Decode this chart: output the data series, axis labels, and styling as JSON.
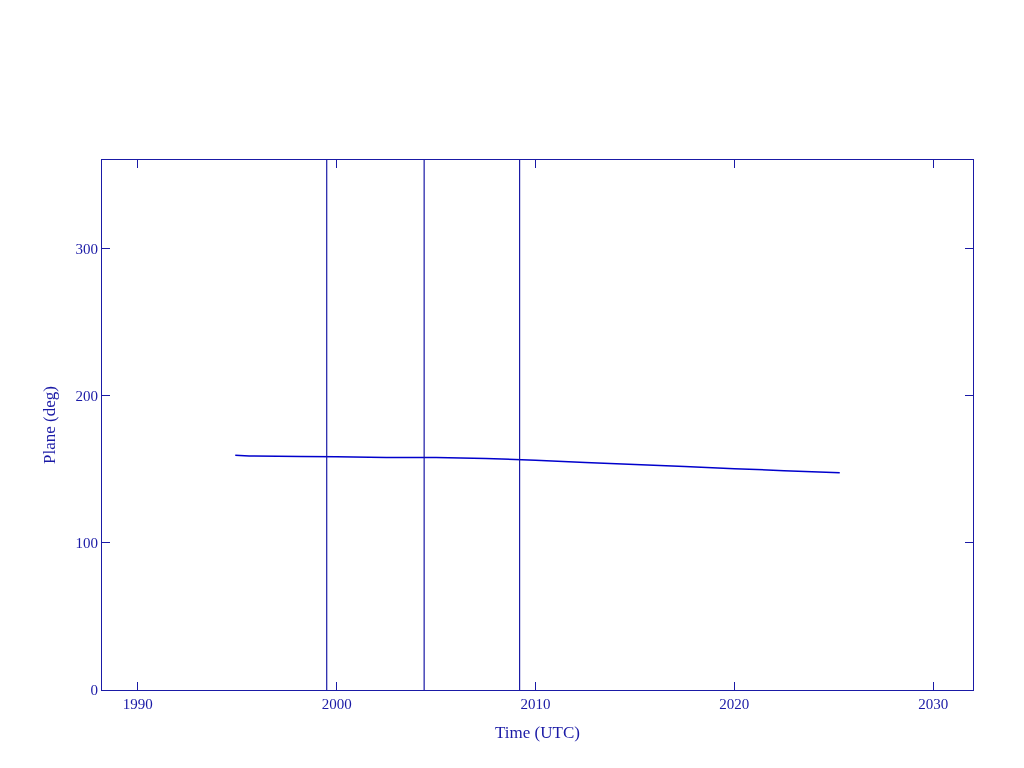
{
  "chart_data": {
    "type": "line",
    "xlabel": "Time (UTC)",
    "ylabel": "Plane (deg)",
    "x": [
      1994.9,
      1995.6,
      1998.2,
      2000.0,
      2002.5,
      2005.0,
      2007.5,
      2010.0,
      2012.5,
      2015.0,
      2017.5,
      2020.0,
      2022.5,
      2025.3
    ],
    "series": [
      {
        "color": "#0000cc",
        "values": [
          159.5,
          159.0,
          158.6,
          158.4,
          158.0,
          157.9,
          157.3,
          156.0,
          154.6,
          153.2,
          151.8,
          150.3,
          149.0,
          147.6
        ]
      }
    ],
    "xlim": [
      1988.2,
      2032.0
    ],
    "xticks": [
      1990,
      2000,
      2010,
      2020,
      2030
    ],
    "ylim": [
      0,
      360
    ],
    "yticks": [
      0,
      100,
      200,
      300
    ],
    "ref_lines": [
      {
        "axis": "x",
        "value": 1999.5,
        "color": "#1a1aa6"
      },
      {
        "axis": "x",
        "value": 2004.4,
        "color": "#1a1aa6"
      },
      {
        "axis": "x",
        "value": 2009.2,
        "color": "#1a1aa6"
      }
    ],
    "legend": false,
    "marker": "none",
    "line_style": "solid"
  }
}
